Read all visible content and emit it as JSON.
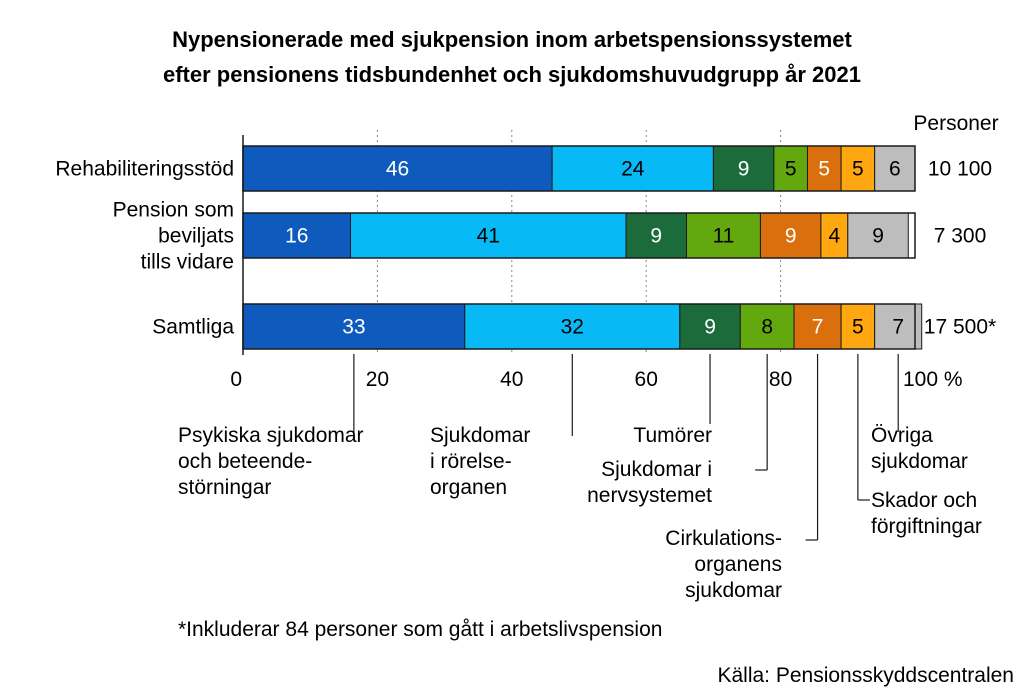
{
  "title_line1": "Nypensionerade med sjukpension inom arbetspensionssystemet",
  "title_line2": "efter pensionens tidsbundenhet och sjukdomshuvudgrupp år 2021",
  "footnote": "*Inkluderar 84 personer som gått i arbetslivspension",
  "source": "Källa: Pensionsskyddscentralen",
  "chart_data": {
    "type": "bar",
    "orientation": "horizontal",
    "stacked": true,
    "xlim": [
      0,
      100
    ],
    "x_ticks": [
      "0",
      "20",
      "40",
      "60",
      "80",
      "100 %"
    ],
    "right_column_header": "Personer",
    "categories": [
      {
        "label_lines": [
          "Rehabiliteringsstöd"
        ],
        "total": "10 100"
      },
      {
        "label_lines": [
          "Pension som",
          "beviljats",
          "tills vidare"
        ],
        "total": "7 300"
      },
      {
        "label_lines": [
          "Samtliga"
        ],
        "total": "17 500*"
      }
    ],
    "series": [
      {
        "name_lines": [
          "Psykiska sjukdomar",
          "och beteende-",
          "störningar"
        ],
        "color": "#0f5bbd",
        "label_color": "#ffffff",
        "values": [
          46,
          16,
          33
        ]
      },
      {
        "name_lines": [
          "Sjukdomar",
          "i rörelse-",
          "organen"
        ],
        "color": "#07b9f5",
        "label_color": "#000000",
        "values": [
          24,
          41,
          32
        ]
      },
      {
        "name_lines": [
          "Tumörer"
        ],
        "color": "#1b6b3b",
        "label_color": "#ffffff",
        "values": [
          9,
          9,
          9
        ]
      },
      {
        "name_lines": [
          "Sjukdomar i",
          "nervsystemet"
        ],
        "color": "#63a80e",
        "label_color": "#000000",
        "values": [
          5,
          11,
          8
        ]
      },
      {
        "name_lines": [
          "Cirkulations-",
          "organens",
          "sjukdomar"
        ],
        "color": "#d9700d",
        "label_color": "#ffffff",
        "values": [
          5,
          9,
          7
        ]
      },
      {
        "name_lines": [
          "Skador och",
          "förgiftningar"
        ],
        "color": "#ffa710",
        "label_color": "#000000",
        "values": [
          5,
          4,
          5
        ]
      },
      {
        "name_lines": [
          "Övriga",
          "sjukdomar"
        ],
        "color": "#bdbdbd",
        "label_color": "#000000",
        "values": [
          6,
          9,
          7
        ]
      }
    ]
  }
}
